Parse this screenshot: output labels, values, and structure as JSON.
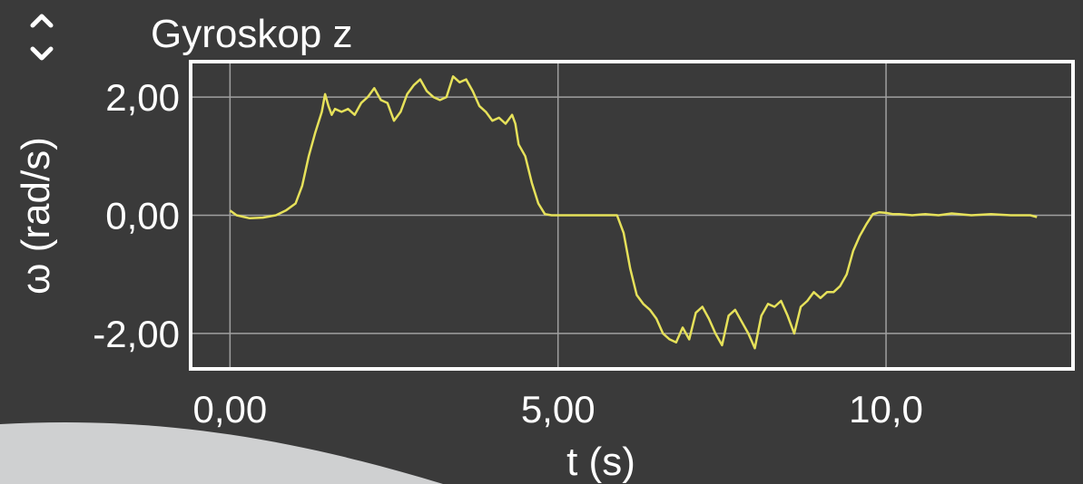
{
  "chart_data": {
    "type": "line",
    "title": "Gyroskop z",
    "xlabel": "t (s)",
    "ylabel": "ω (rad/s)",
    "xlim": [
      -0.6,
      12.85
    ],
    "ylim": [
      -2.6,
      2.6
    ],
    "x_ticks": [
      0,
      5,
      10
    ],
    "x_tick_labels": [
      "0,00",
      "5,00",
      "10,0"
    ],
    "y_ticks": [
      2,
      0,
      -2
    ],
    "y_tick_labels": [
      "2,00",
      "0,00",
      "-2,00"
    ],
    "grid": true,
    "series": [
      {
        "color": "#e6e15a",
        "x": [
          0.0,
          0.1,
          0.3,
          0.5,
          0.7,
          0.85,
          1.0,
          1.1,
          1.2,
          1.3,
          1.4,
          1.45,
          1.5,
          1.55,
          1.6,
          1.7,
          1.8,
          1.9,
          2.0,
          2.1,
          2.2,
          2.3,
          2.4,
          2.5,
          2.6,
          2.7,
          2.8,
          2.9,
          3.0,
          3.1,
          3.2,
          3.3,
          3.4,
          3.5,
          3.6,
          3.7,
          3.8,
          3.9,
          4.0,
          4.1,
          4.2,
          4.3,
          4.35,
          4.4,
          4.5,
          4.6,
          4.7,
          4.8,
          4.9,
          5.0,
          5.5,
          5.9,
          6.0,
          6.1,
          6.2,
          6.3,
          6.4,
          6.5,
          6.6,
          6.7,
          6.8,
          6.9,
          7.0,
          7.1,
          7.2,
          7.3,
          7.4,
          7.5,
          7.6,
          7.7,
          7.8,
          7.9,
          8.0,
          8.1,
          8.2,
          8.3,
          8.4,
          8.5,
          8.6,
          8.7,
          8.8,
          8.9,
          9.0,
          9.1,
          9.2,
          9.3,
          9.4,
          9.5,
          9.6,
          9.7,
          9.8,
          9.9,
          10.0,
          10.1,
          10.2,
          10.4,
          10.6,
          10.8,
          11.0,
          11.3,
          11.6,
          11.9,
          12.2,
          12.3
        ],
        "y": [
          0.08,
          0.0,
          -0.05,
          -0.04,
          0.0,
          0.08,
          0.2,
          0.5,
          1.0,
          1.4,
          1.75,
          2.05,
          1.85,
          1.7,
          1.8,
          1.75,
          1.8,
          1.7,
          1.9,
          2.0,
          2.15,
          1.95,
          1.9,
          1.6,
          1.75,
          2.05,
          2.2,
          2.3,
          2.1,
          2.0,
          1.95,
          2.0,
          2.35,
          2.25,
          2.3,
          2.1,
          1.85,
          1.75,
          1.6,
          1.65,
          1.55,
          1.7,
          1.55,
          1.2,
          1.0,
          0.55,
          0.2,
          0.02,
          0.0,
          0.0,
          0.0,
          0.0,
          -0.3,
          -0.9,
          -1.35,
          -1.5,
          -1.6,
          -1.75,
          -2.0,
          -2.1,
          -2.15,
          -1.9,
          -2.1,
          -1.65,
          -1.55,
          -1.75,
          -2.0,
          -2.2,
          -1.7,
          -1.6,
          -1.8,
          -2.0,
          -2.25,
          -1.7,
          -1.5,
          -1.55,
          -1.45,
          -1.7,
          -2.0,
          -1.55,
          -1.45,
          -1.3,
          -1.4,
          -1.3,
          -1.3,
          -1.2,
          -1.0,
          -0.6,
          -0.35,
          -0.15,
          0.02,
          0.05,
          0.04,
          0.02,
          0.02,
          0.0,
          0.02,
          0.0,
          0.03,
          0.0,
          0.02,
          0.0,
          0.0,
          -0.03
        ]
      }
    ]
  }
}
